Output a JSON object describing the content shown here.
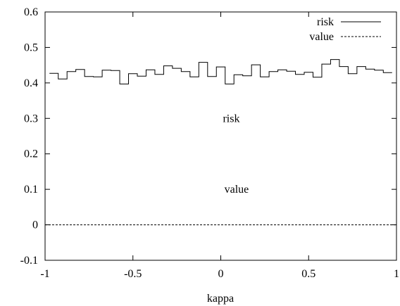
{
  "chart_data": {
    "type": "line",
    "title": "",
    "xlabel": "kappa",
    "ylabel": "",
    "xlim": [
      -1,
      1
    ],
    "ylim": [
      -0.1,
      0.6
    ],
    "x_ticks": [
      -1,
      -0.5,
      0,
      0.5,
      1
    ],
    "x_tick_labels": [
      "-1",
      "-0.5",
      "0",
      "0.5",
      "1"
    ],
    "y_ticks": [
      -0.1,
      0,
      0.1,
      0.2,
      0.3,
      0.4,
      0.5,
      0.6
    ],
    "y_tick_labels": [
      "-0.1",
      "0",
      "0.1",
      "0.2",
      "0.3",
      "0.4",
      "0.5",
      "0.6"
    ],
    "grid": false,
    "legend_position": "top-right",
    "series": [
      {
        "name": "risk",
        "style": "solid",
        "step": true,
        "color": "#000000",
        "x": [
          -0.95,
          -0.9,
          -0.85,
          -0.8,
          -0.75,
          -0.7,
          -0.65,
          -0.6,
          -0.55,
          -0.5,
          -0.45,
          -0.4,
          -0.35,
          -0.3,
          -0.25,
          -0.2,
          -0.15,
          -0.1,
          -0.05,
          0.0,
          0.05,
          0.1,
          0.15,
          0.2,
          0.25,
          0.3,
          0.35,
          0.4,
          0.45,
          0.5,
          0.55,
          0.6,
          0.65,
          0.7,
          0.75,
          0.8,
          0.85,
          0.9,
          0.95
        ],
        "y": [
          0.427,
          0.411,
          0.432,
          0.438,
          0.418,
          0.417,
          0.436,
          0.435,
          0.397,
          0.426,
          0.419,
          0.437,
          0.424,
          0.448,
          0.441,
          0.432,
          0.417,
          0.458,
          0.418,
          0.445,
          0.397,
          0.423,
          0.42,
          0.451,
          0.417,
          0.432,
          0.437,
          0.433,
          0.424,
          0.43,
          0.416,
          0.453,
          0.466,
          0.446,
          0.426,
          0.446,
          0.439,
          0.436,
          0.429
        ]
      },
      {
        "name": "value",
        "style": "dashed",
        "color": "#000000",
        "x": [
          -1,
          1
        ],
        "y": [
          0.0,
          0.0
        ]
      }
    ],
    "annotations": [
      {
        "text": "risk",
        "x": 0.06,
        "y": 0.29
      },
      {
        "text": "value",
        "x": 0.09,
        "y": 0.09
      }
    ]
  }
}
